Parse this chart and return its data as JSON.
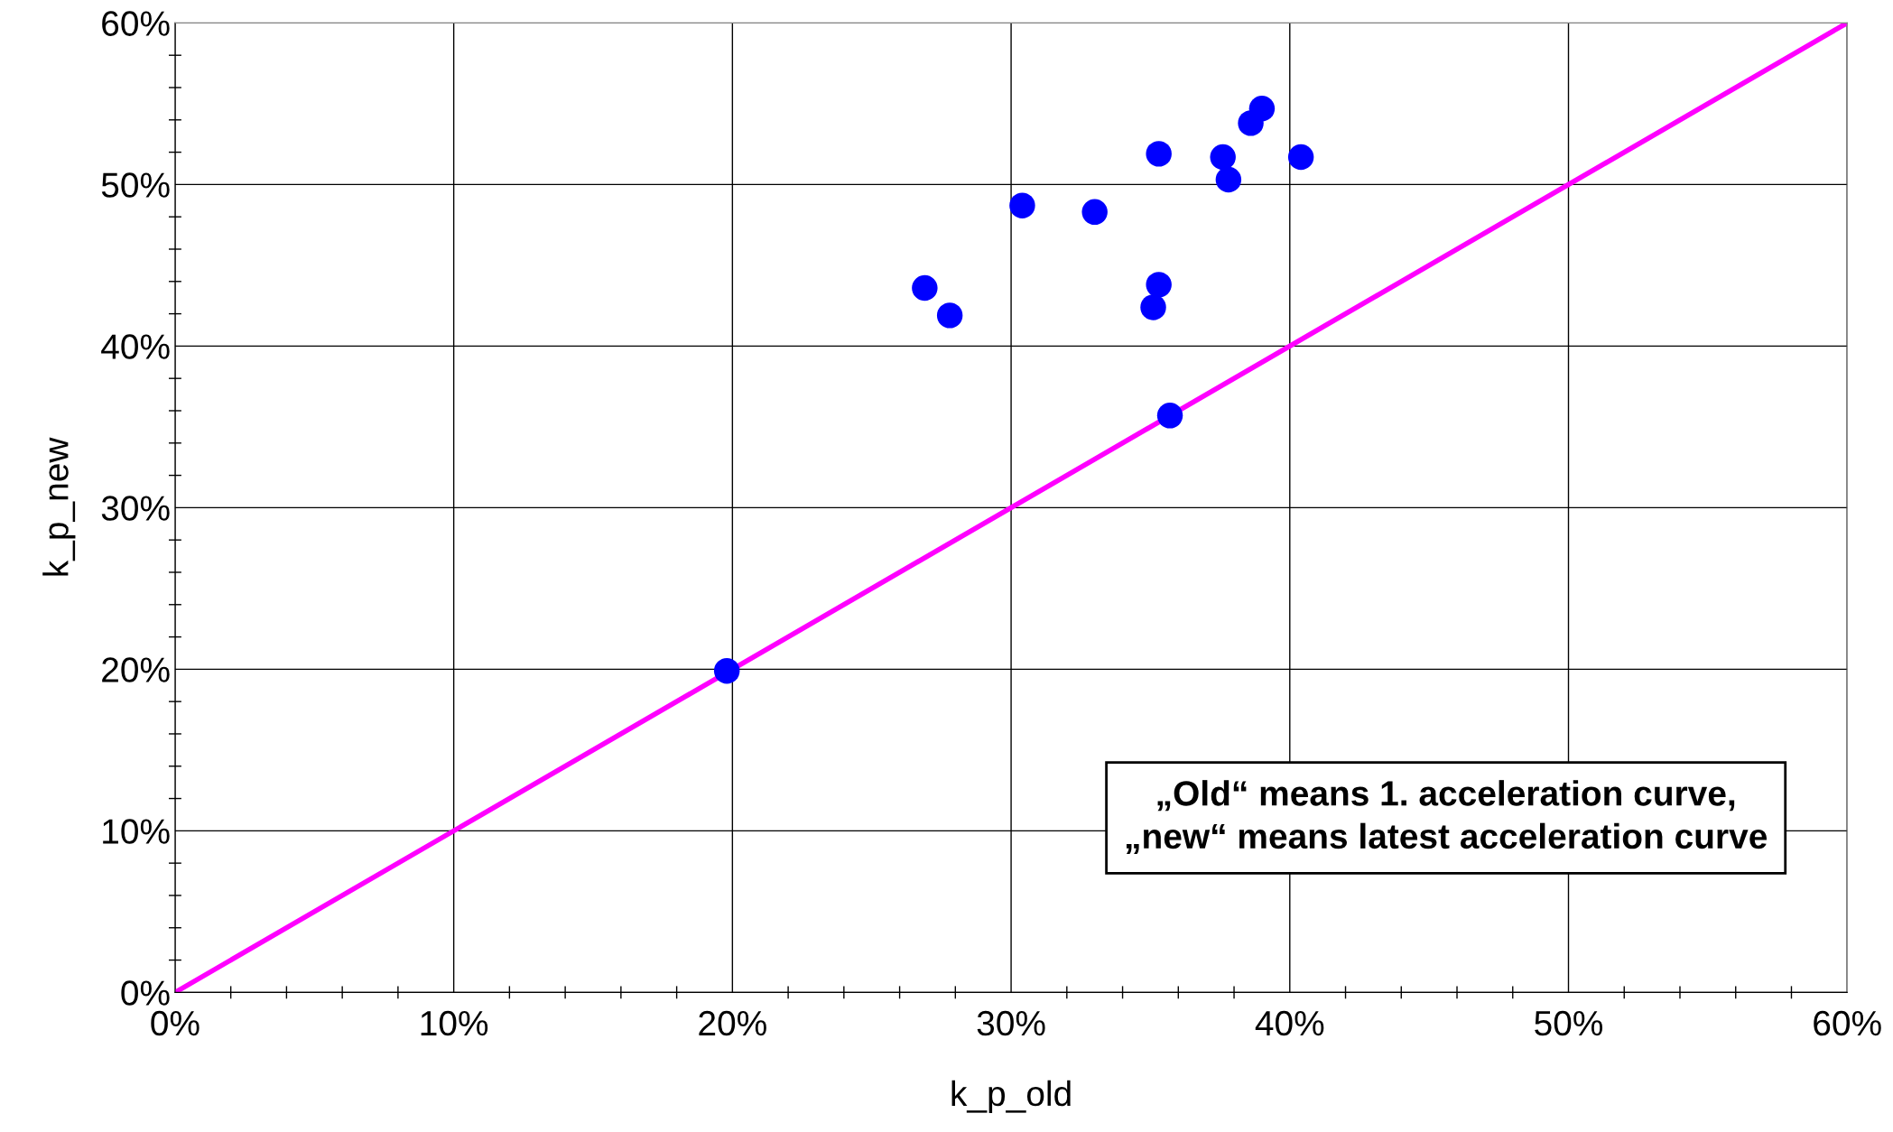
{
  "chart_data": {
    "type": "scatter",
    "xlabel": "k_p_old",
    "ylabel": "k_p_new",
    "xlim": [
      0,
      60
    ],
    "ylim": [
      0,
      60
    ],
    "xticks": [
      {
        "value": 0,
        "label": "0%"
      },
      {
        "value": 10,
        "label": "10%"
      },
      {
        "value": 20,
        "label": "20%"
      },
      {
        "value": 30,
        "label": "30%"
      },
      {
        "value": 40,
        "label": "40%"
      },
      {
        "value": 50,
        "label": "50%"
      },
      {
        "value": 60,
        "label": "60%"
      }
    ],
    "yticks": [
      {
        "value": 0,
        "label": "0%"
      },
      {
        "value": 10,
        "label": "10%"
      },
      {
        "value": 20,
        "label": "20%"
      },
      {
        "value": 30,
        "label": "30%"
      },
      {
        "value": 40,
        "label": "40%"
      },
      {
        "value": 50,
        "label": "50%"
      },
      {
        "value": 60,
        "label": "60%"
      }
    ],
    "grid": true,
    "series": [
      {
        "marker": "circle",
        "color": "#0000ff",
        "x": [
          19.8,
          26.9,
          27.8,
          30.4,
          33.0,
          35.3,
          35.3,
          35.1,
          35.7,
          37.6,
          37.8,
          38.6,
          39.0,
          40.4
        ],
        "values": [
          19.9,
          43.6,
          41.9,
          48.7,
          48.3,
          51.9,
          43.8,
          42.4,
          35.7,
          51.7,
          50.3,
          53.8,
          54.7,
          51.7
        ]
      },
      {
        "type": "line",
        "color": "#ff00ff",
        "x": [
          0,
          60
        ],
        "values": [
          0,
          60
        ]
      }
    ],
    "annotations": [
      "„Old“ means 1. acceleration curve,\n„new“ means latest acceleration curve"
    ]
  }
}
